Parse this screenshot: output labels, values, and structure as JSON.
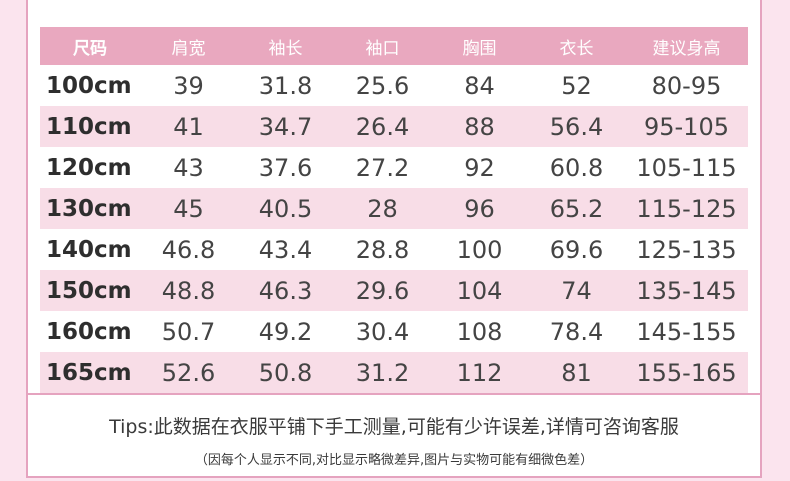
{
  "table": {
    "headers": [
      "尺码",
      "肩宽",
      "袖长",
      "袖口",
      "胸围",
      "衣长",
      "建议身高"
    ],
    "rows": [
      [
        "100cm",
        "39",
        "31.8",
        "25.6",
        "84",
        "52",
        "80-95"
      ],
      [
        "110cm",
        "41",
        "34.7",
        "26.4",
        "88",
        "56.4",
        "95-105"
      ],
      [
        "120cm",
        "43",
        "37.6",
        "27.2",
        "92",
        "60.8",
        "105-115"
      ],
      [
        "130cm",
        "45",
        "40.5",
        "28",
        "96",
        "65.2",
        "115-125"
      ],
      [
        "140cm",
        "46.8",
        "43.4",
        "28.8",
        "100",
        "69.6",
        "125-135"
      ],
      [
        "150cm",
        "48.8",
        "46.3",
        "29.6",
        "104",
        "74",
        "135-145"
      ],
      [
        "160cm",
        "50.7",
        "49.2",
        "30.4",
        "108",
        "78.4",
        "145-155"
      ],
      [
        "165cm",
        "52.6",
        "50.8",
        "31.2",
        "112",
        "81",
        "155-165"
      ]
    ]
  },
  "footer": {
    "tips": "Tips:此数据在衣服平铺下手工测量,可能有少许误差,详情可咨询客服",
    "note": "（因每个人显示不同,对比显示略微差异,图片与实物可能有细微色差）"
  },
  "colors": {
    "header_bg": "#e9a8bf",
    "alt_row_bg": "#f8dde7",
    "page_bg": "#fbe4ee",
    "border": "#e5a3bf"
  }
}
